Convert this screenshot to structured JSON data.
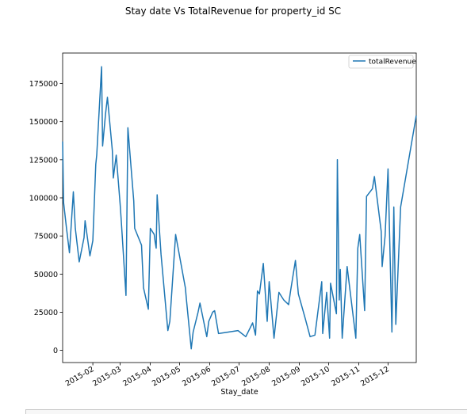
{
  "chart_data": {
    "type": "line",
    "title": "Stay date Vs TotalRevenue for property_id SC",
    "xlabel": "Stay_date",
    "ylabel": "",
    "xlim": [
      "2015-01-01",
      "2015-12-30"
    ],
    "ylim": [
      -8000,
      195000
    ],
    "x_ticks": [
      "2015-02",
      "2015-03",
      "2015-04",
      "2015-05",
      "2015-06",
      "2015-07",
      "2015-08",
      "2015-09",
      "2015-10",
      "2015-11",
      "2015-12"
    ],
    "y_ticks": [
      0,
      25000,
      50000,
      75000,
      100000,
      125000,
      150000,
      175000
    ],
    "legend": {
      "position": "top-right",
      "entries": [
        "totalRevenue"
      ]
    },
    "grid": false,
    "color": "#1f77b4",
    "series": [
      {
        "name": "totalRevenue",
        "x": [
          "2015-01-01",
          "2015-01-02",
          "2015-01-05",
          "2015-01-08",
          "2015-01-12",
          "2015-01-14",
          "2015-01-18",
          "2015-01-23",
          "2015-01-24",
          "2015-01-29",
          "2015-02-01",
          "2015-02-04",
          "2015-02-05",
          "2015-02-10",
          "2015-02-11",
          "2015-02-14",
          "2015-02-16",
          "2015-02-21",
          "2015-02-22",
          "2015-02-25",
          "2015-03-01",
          "2015-03-02",
          "2015-03-07",
          "2015-03-09",
          "2015-03-15",
          "2015-03-16",
          "2015-03-23",
          "2015-03-25",
          "2015-03-30",
          "2015-04-01",
          "2015-04-05",
          "2015-04-06",
          "2015-04-07",
          "2015-04-08",
          "2015-04-12",
          "2015-04-19",
          "2015-04-21",
          "2015-04-27",
          "2015-05-07",
          "2015-05-08",
          "2015-05-13",
          "2015-05-15",
          "2015-05-20",
          "2015-05-22",
          "2015-05-29",
          "2015-05-31",
          "2015-06-04",
          "2015-06-06",
          "2015-06-10",
          "2015-06-30",
          "2015-07-08",
          "2015-07-15",
          "2015-07-18",
          "2015-07-20",
          "2015-07-22",
          "2015-07-26",
          "2015-07-30",
          "2015-08-01",
          "2015-08-06",
          "2015-08-11",
          "2015-08-16",
          "2015-08-21",
          "2015-08-23",
          "2015-08-28",
          "2015-08-31",
          "2015-09-07",
          "2015-09-12",
          "2015-09-17",
          "2015-09-24",
          "2015-09-25",
          "2015-09-29",
          "2015-10-02",
          "2015-10-03",
          "2015-10-09",
          "2015-10-10",
          "2015-10-12",
          "2015-10-13",
          "2015-10-15",
          "2015-10-20",
          "2015-10-29",
          "2015-10-31",
          "2015-11-02",
          "2015-11-07",
          "2015-11-09",
          "2015-11-15",
          "2015-11-17",
          "2015-11-24",
          "2015-11-25",
          "2015-11-28",
          "2015-12-01",
          "2015-12-05",
          "2015-12-07",
          "2015-12-09",
          "2015-12-14",
          "2015-12-30"
        ],
        "y": [
          137000,
          97000,
          80000,
          64000,
          104000,
          80000,
          58000,
          74000,
          85000,
          62000,
          72000,
          122000,
          128000,
          186000,
          134000,
          155000,
          166000,
          131000,
          113000,
          128000,
          96000,
          87000,
          36000,
          146000,
          98000,
          80000,
          69000,
          41000,
          27000,
          80000,
          76000,
          71000,
          67000,
          102000,
          63000,
          13000,
          19000,
          76000,
          41000,
          34000,
          1000,
          12000,
          25000,
          31000,
          9000,
          19000,
          25000,
          26000,
          11000,
          13000,
          9000,
          18000,
          10000,
          39000,
          37000,
          57000,
          19000,
          45000,
          8000,
          38000,
          33000,
          30000,
          39000,
          59000,
          37000,
          21000,
          9000,
          10000,
          45000,
          11000,
          38000,
          8000,
          44000,
          24000,
          125000,
          33000,
          53000,
          8000,
          55000,
          8000,
          67000,
          76000,
          26000,
          101000,
          106000,
          114000,
          78000,
          55000,
          75000,
          119000,
          12000,
          94000,
          17000,
          94000,
          154000
        ]
      }
    ]
  }
}
